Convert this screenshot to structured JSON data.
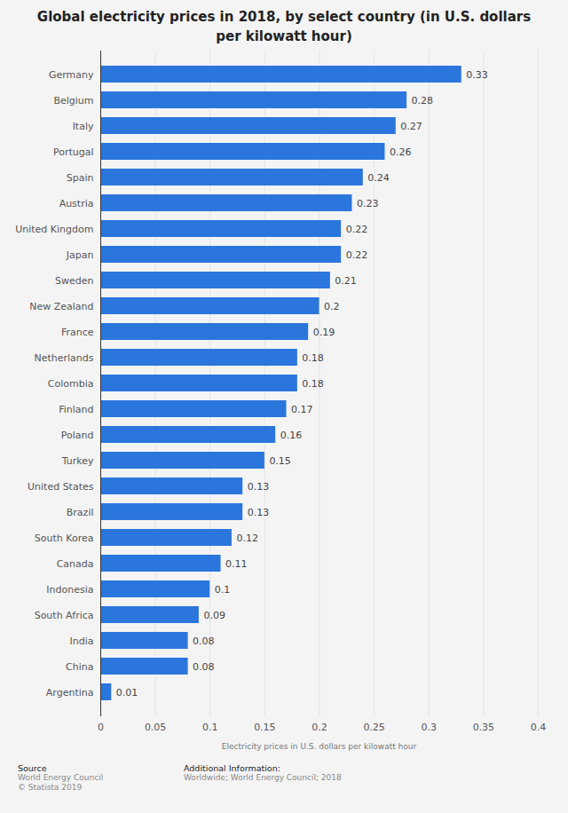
{
  "chart_data": {
    "type": "bar",
    "title": "Global electricity prices in 2018, by select country (in U.S. dollars per kilowatt hour)",
    "categories": [
      "Germany",
      "Belgium",
      "Italy",
      "Portugal",
      "Spain",
      "Austria",
      "United Kingdom",
      "Japan",
      "Sweden",
      "New Zealand",
      "France",
      "Netherlands",
      "Colombia",
      "Finland",
      "Poland",
      "Turkey",
      "United States",
      "Brazil",
      "South Korea",
      "Canada",
      "Indonesia",
      "South Africa",
      "India",
      "China",
      "Argentina"
    ],
    "values": [
      0.33,
      0.28,
      0.27,
      0.26,
      0.24,
      0.23,
      0.22,
      0.22,
      0.21,
      0.2,
      0.19,
      0.18,
      0.18,
      0.17,
      0.16,
      0.15,
      0.13,
      0.13,
      0.12,
      0.11,
      0.1,
      0.09,
      0.08,
      0.08,
      0.01
    ],
    "color": "#2a76dd",
    "orientation": "horizontal",
    "data_labels": true,
    "grid": true,
    "x_label": "Electricity prices in U.S. dollars per kilowatt hour",
    "xlim": [
      0,
      0.4
    ],
    "xticks": [
      0,
      0.05,
      0.1,
      0.15,
      0.2,
      0.25,
      0.3,
      0.35,
      0.4
    ],
    "annotations": [
      {
        "label": "Source",
        "lines": [
          "World Energy Council",
          "© Statista 2019"
        ]
      },
      {
        "label": "Additional Information:",
        "lines": [
          "Worldwide; World Energy Council; 2018"
        ]
      }
    ]
  }
}
